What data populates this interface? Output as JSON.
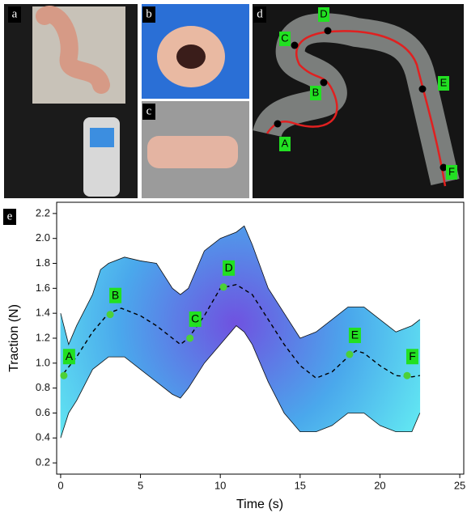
{
  "panels": {
    "a": "a",
    "b": "b",
    "c": "c",
    "d": "d",
    "e": "e"
  },
  "photo_d_labels": [
    "A",
    "B",
    "C",
    "D",
    "E",
    "F"
  ],
  "chart_data": {
    "type": "line",
    "xlabel": "Time (s)",
    "ylabel": "Traction (N)",
    "xlim": [
      -0.25,
      25.25
    ],
    "ylim": [
      0.11,
      2.29
    ],
    "xticks": [
      0,
      5,
      10,
      15,
      20,
      25
    ],
    "yticks": [
      0.2,
      0.4,
      0.6,
      0.8,
      {
        "value": 1,
        "label": "1.0"
      },
      1.2,
      1.4,
      1.6,
      1.8,
      {
        "value": 2,
        "label": "2.0"
      },
      2.2
    ],
    "band": {
      "x": [
        0,
        0.5,
        1,
        2,
        2.5,
        3,
        4,
        5,
        6,
        7,
        7.5,
        8,
        9,
        10,
        11,
        11.5,
        12,
        13,
        14,
        15,
        16,
        17,
        18,
        19,
        20,
        21,
        22,
        22.5
      ],
      "upper": [
        1.4,
        1.15,
        1.3,
        1.55,
        1.75,
        1.8,
        1.85,
        1.82,
        1.8,
        1.6,
        1.55,
        1.6,
        1.9,
        2.0,
        2.05,
        2.1,
        1.95,
        1.6,
        1.4,
        1.2,
        1.25,
        1.35,
        1.45,
        1.45,
        1.35,
        1.25,
        1.3,
        1.35
      ],
      "lower": [
        0.4,
        0.6,
        0.7,
        0.95,
        1.0,
        1.05,
        1.05,
        0.95,
        0.85,
        0.75,
        0.72,
        0.8,
        1.0,
        1.15,
        1.3,
        1.25,
        1.15,
        0.85,
        0.6,
        0.45,
        0.45,
        0.5,
        0.6,
        0.6,
        0.5,
        0.45,
        0.45,
        0.6
      ]
    },
    "mean": {
      "x": [
        0.2,
        1,
        2,
        3,
        3.8,
        5,
        6,
        7,
        7.5,
        8,
        9,
        10,
        11,
        12,
        13,
        14,
        15,
        16,
        17,
        18,
        18.5,
        19,
        20,
        21,
        22,
        22.5
      ],
      "values": [
        0.92,
        1.05,
        1.25,
        1.4,
        1.44,
        1.38,
        1.3,
        1.2,
        1.15,
        1.2,
        1.38,
        1.6,
        1.63,
        1.55,
        1.35,
        1.15,
        0.98,
        0.88,
        0.93,
        1.05,
        1.1,
        1.08,
        0.98,
        0.9,
        0.89,
        0.9
      ]
    },
    "points": {
      "labels": [
        "A",
        "B",
        "C",
        "D",
        "E",
        "F"
      ],
      "x": [
        0.2,
        3.1,
        8.1,
        10.2,
        18.1,
        21.7
      ],
      "values": [
        0.9,
        1.39,
        1.2,
        1.61,
        1.07,
        0.9
      ],
      "color": "#4cd137"
    }
  }
}
